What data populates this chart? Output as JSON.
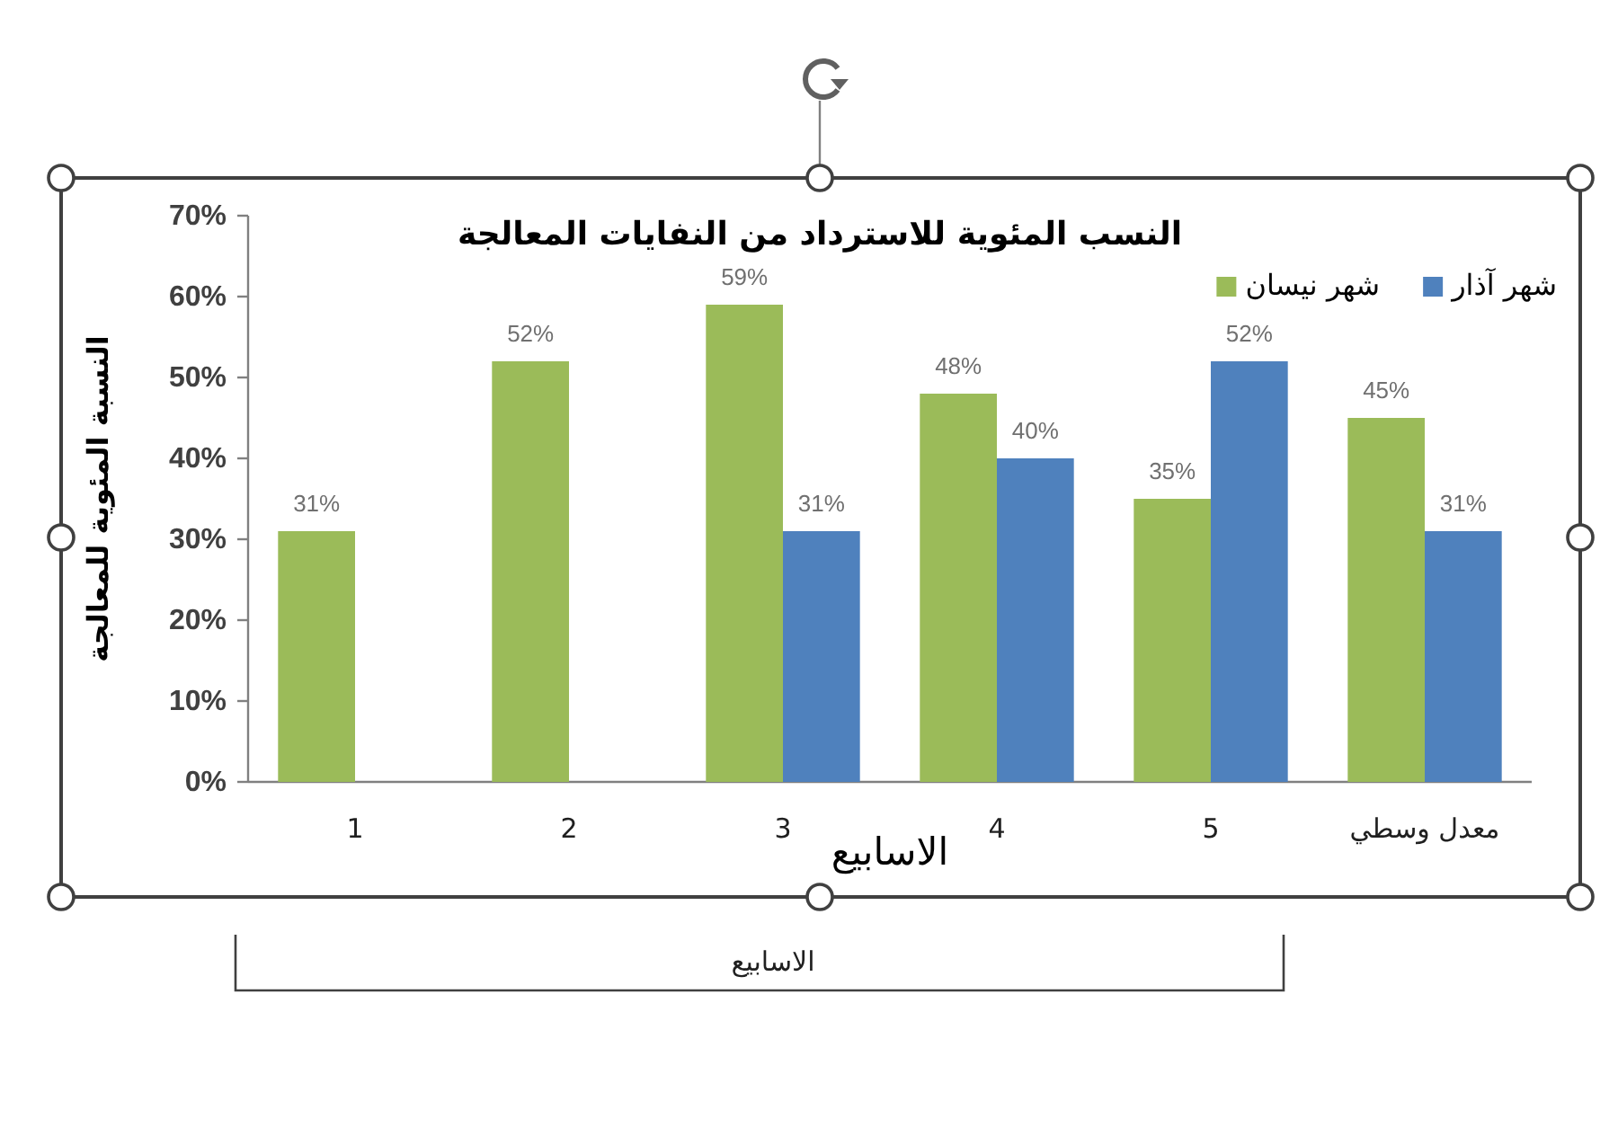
{
  "chart_data": {
    "type": "bar",
    "title": "النسب المئوية للاسترداد من النفايات المعالجة",
    "xlabel": "الاسابيع",
    "ylabel": "النسبة المئوية للمعالجة",
    "categories": [
      "1",
      "2",
      "3",
      "4",
      "5",
      "معدل وسطي"
    ],
    "series": [
      {
        "name": "شهر نيسان",
        "color": "#9bbb59",
        "values": [
          31,
          52,
          59,
          48,
          35,
          45
        ],
        "value_labels": [
          "31%",
          "52%",
          "59%",
          "48%",
          "35%",
          "45%"
        ]
      },
      {
        "name": "شهر آذار",
        "color": "#4f81bd",
        "values": [
          null,
          null,
          31,
          40,
          52,
          31
        ],
        "value_labels": [
          null,
          null,
          "31%",
          "40%",
          "52%",
          "31%"
        ]
      }
    ],
    "ylim": [
      0,
      70
    ],
    "yticks": [
      {
        "value": 0,
        "label": "0%"
      },
      {
        "value": 10,
        "label": "10%"
      },
      {
        "value": 20,
        "label": "20%"
      },
      {
        "value": 30,
        "label": "30%"
      },
      {
        "value": 40,
        "label": "40%"
      },
      {
        "value": 50,
        "label": "50%"
      },
      {
        "value": 60,
        "label": "60%"
      },
      {
        "value": 70,
        "label": "70%"
      }
    ],
    "legend": "top right",
    "annotations": [
      "الاسابيع"
    ]
  }
}
